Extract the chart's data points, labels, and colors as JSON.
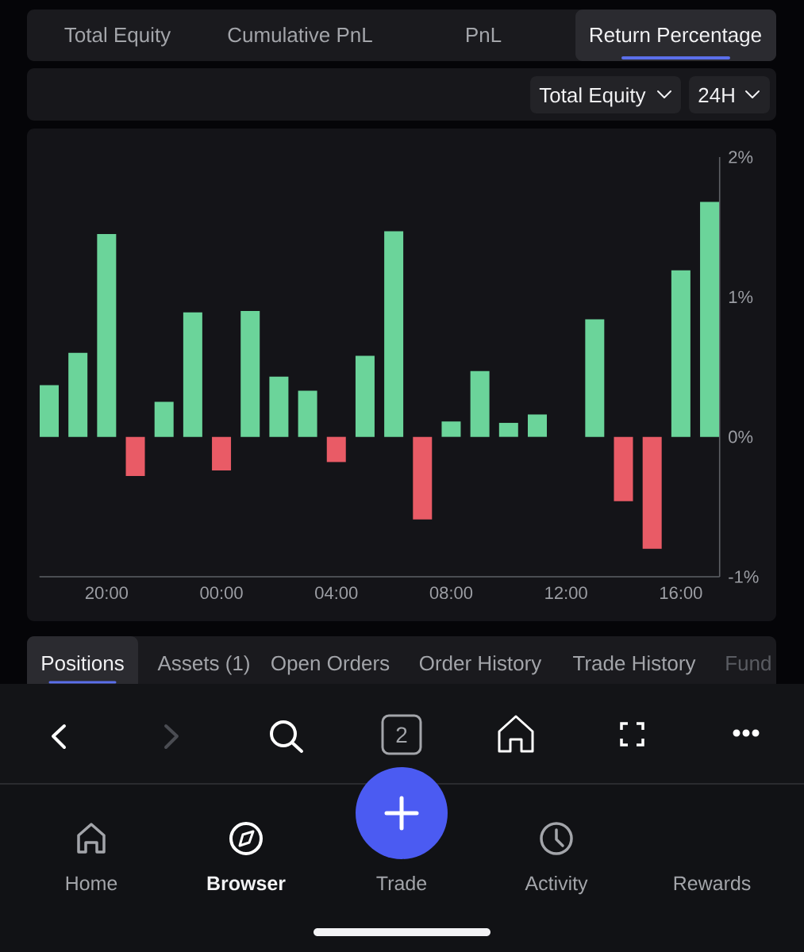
{
  "chart_data": {
    "type": "bar",
    "title": "Return Percentage",
    "categories": [
      null,
      null,
      "20:00",
      null,
      null,
      null,
      "00:00",
      null,
      null,
      null,
      "04:00",
      null,
      null,
      null,
      "08:00",
      null,
      null,
      null,
      "12:00",
      null,
      null,
      null,
      "16:00",
      null
    ],
    "values": [
      0.37,
      0.6,
      1.45,
      -0.28,
      0.25,
      0.89,
      -0.24,
      0.9,
      0.43,
      0.33,
      -0.18,
      0.58,
      1.47,
      -0.59,
      0.11,
      0.47,
      0.1,
      0.16,
      null,
      0.84,
      -0.46,
      -0.8,
      1.19,
      1.68
    ],
    "colors": [
      "#6bd49a",
      "#6bd49a",
      "#6bd49a",
      "#e95b66",
      "#6bd49a",
      "#6bd49a",
      "#e95b66",
      "#6bd49a",
      "#6bd49a",
      "#6bd49a",
      "#e95b66",
      "#6bd49a",
      "#6bd49a",
      "#e95b66",
      "#6bd49a",
      "#6bd49a",
      "#6bd49a",
      "#6bd49a",
      null,
      "#6bd49a",
      "#e95b66",
      "#e95b66",
      "#6bd49a",
      "#6bd49a"
    ],
    "ylim": [
      -1,
      2
    ],
    "yticks": [
      {
        "value": -1,
        "label": "-1%"
      },
      {
        "value": 0,
        "label": "0%"
      },
      {
        "value": 1,
        "label": "1%"
      },
      {
        "value": 2,
        "label": "2%"
      }
    ],
    "annotations": [
      "Total Equity",
      "Cumulative PnL",
      "PnL",
      "Total Equity",
      "24H",
      "Positions",
      "Assets (1)",
      "Open Orders",
      "Order History",
      "Trade History",
      "Fund",
      "2",
      "Home",
      "Browser",
      "Trade",
      "Activity",
      "Rewards"
    ]
  }
}
